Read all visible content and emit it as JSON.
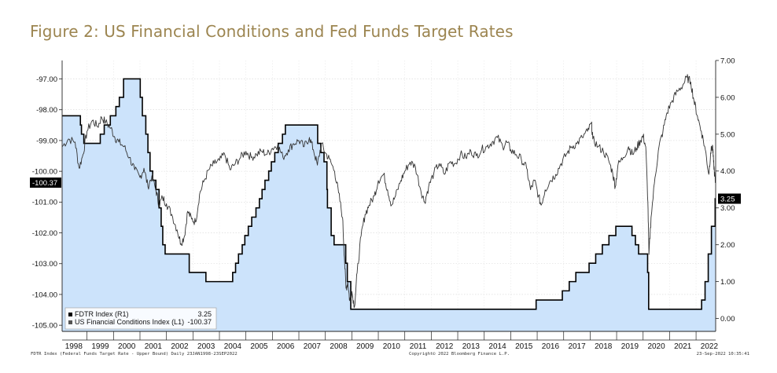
{
  "title": "Figure 2: US Financial Conditions and Fed Funds Target Rates",
  "footer": {
    "left": "FDTR Index (Federal Funds Target Rate - Upper Bound) Daily 23JAN1998-23SEP2022",
    "center": "Copyright© 2022 Bloomberg Finance L.P.",
    "right": "23-Sep-2022 10:35:41"
  },
  "legend": {
    "items": [
      {
        "label": "FDTR Index  (R1)",
        "value": "3.25"
      },
      {
        "label": "US Financial Conditions Index  (L1)",
        "value": "-100.37"
      }
    ]
  },
  "last_value_tags": {
    "left": "-100.37",
    "right": "3.25"
  },
  "colors": {
    "fill": "#cce3fb",
    "fdtr_line": "#000000",
    "fci_line": "#333333",
    "tag_bg": "#000000"
  },
  "chart_data": {
    "type": "line",
    "x_ticks": [
      "1998",
      "1999",
      "2000",
      "2001",
      "2002",
      "2003",
      "2004",
      "2005",
      "2006",
      "2007",
      "2008",
      "2009",
      "2010",
      "2011",
      "2012",
      "2013",
      "2014",
      "2015",
      "2016",
      "2017",
      "2018",
      "2019",
      "2020",
      "2021",
      "2022"
    ],
    "left_axis": {
      "ticks": [
        "-97.00",
        "-98.00",
        "-99.00",
        "-100.00",
        "-101.00",
        "-102.00",
        "-103.00",
        "-104.00",
        "-105.00"
      ],
      "range": [
        -105.2,
        -96.4
      ]
    },
    "right_axis": {
      "ticks": [
        "7.00",
        "6.00",
        "5.00",
        "4.00",
        "3.00",
        "2.00",
        "1.00",
        "0.00"
      ],
      "range": [
        -0.35,
        7.0
      ]
    },
    "series": [
      {
        "name": "FDTR Index (R1)",
        "axis": "right",
        "style": "step-area",
        "points": [
          [
            1998.06,
            5.5
          ],
          [
            1998.75,
            5.25
          ],
          [
            1998.79,
            5.0
          ],
          [
            1998.88,
            4.75
          ],
          [
            1999.5,
            5.0
          ],
          [
            1999.65,
            5.25
          ],
          [
            1999.88,
            5.5
          ],
          [
            2000.09,
            5.75
          ],
          [
            2000.22,
            6.0
          ],
          [
            2000.38,
            6.5
          ],
          [
            2001.01,
            6.0
          ],
          [
            2001.09,
            5.5
          ],
          [
            2001.22,
            5.0
          ],
          [
            2001.3,
            4.5
          ],
          [
            2001.38,
            4.0
          ],
          [
            2001.48,
            3.75
          ],
          [
            2001.6,
            3.5
          ],
          [
            2001.72,
            3.0
          ],
          [
            2001.8,
            2.5
          ],
          [
            2001.86,
            2.0
          ],
          [
            2001.95,
            1.75
          ],
          [
            2002.86,
            1.25
          ],
          [
            2003.49,
            1.0
          ],
          [
            2004.5,
            1.25
          ],
          [
            2004.61,
            1.5
          ],
          [
            2004.72,
            1.75
          ],
          [
            2004.86,
            2.0
          ],
          [
            2004.96,
            2.25
          ],
          [
            2005.09,
            2.5
          ],
          [
            2005.22,
            2.75
          ],
          [
            2005.38,
            3.0
          ],
          [
            2005.51,
            3.25
          ],
          [
            2005.61,
            3.5
          ],
          [
            2005.72,
            3.75
          ],
          [
            2005.86,
            4.0
          ],
          [
            2005.96,
            4.25
          ],
          [
            2006.09,
            4.5
          ],
          [
            2006.22,
            4.75
          ],
          [
            2006.38,
            5.0
          ],
          [
            2006.49,
            5.25
          ],
          [
            2007.71,
            4.75
          ],
          [
            2007.83,
            4.5
          ],
          [
            2007.95,
            4.25
          ],
          [
            2008.06,
            3.5
          ],
          [
            2008.08,
            3.0
          ],
          [
            2008.22,
            2.25
          ],
          [
            2008.33,
            2.0
          ],
          [
            2008.77,
            1.5
          ],
          [
            2008.83,
            1.0
          ],
          [
            2008.96,
            0.25
          ],
          [
            2015.96,
            0.5
          ],
          [
            2016.95,
            0.75
          ],
          [
            2017.21,
            1.0
          ],
          [
            2017.46,
            1.25
          ],
          [
            2017.96,
            1.5
          ],
          [
            2018.21,
            1.75
          ],
          [
            2018.46,
            2.0
          ],
          [
            2018.71,
            2.25
          ],
          [
            2018.97,
            2.5
          ],
          [
            2019.58,
            2.25
          ],
          [
            2019.71,
            2.0
          ],
          [
            2019.83,
            1.75
          ],
          [
            2020.17,
            1.25
          ],
          [
            2020.21,
            0.25
          ],
          [
            2022.21,
            0.5
          ],
          [
            2022.34,
            1.0
          ],
          [
            2022.46,
            1.75
          ],
          [
            2022.58,
            2.5
          ],
          [
            2022.72,
            3.25
          ],
          [
            2022.73,
            3.25
          ]
        ]
      },
      {
        "name": "US Financial Conditions Index (L1)",
        "axis": "left",
        "style": "line",
        "points": [
          [
            1998.06,
            -99.2
          ],
          [
            1998.3,
            -98.95
          ],
          [
            1998.55,
            -99.05
          ],
          [
            1998.7,
            -99.9
          ],
          [
            1998.85,
            -99.45
          ],
          [
            1999.0,
            -98.7
          ],
          [
            1999.2,
            -98.35
          ],
          [
            1999.4,
            -98.55
          ],
          [
            1999.55,
            -98.25
          ],
          [
            1999.7,
            -98.4
          ],
          [
            1999.9,
            -98.6
          ],
          [
            2000.05,
            -98.9
          ],
          [
            2000.2,
            -99.05
          ],
          [
            2000.4,
            -99.2
          ],
          [
            2000.6,
            -99.55
          ],
          [
            2000.8,
            -99.95
          ],
          [
            2001.0,
            -100.2
          ],
          [
            2001.15,
            -99.9
          ],
          [
            2001.3,
            -100.5
          ],
          [
            2001.45,
            -100.15
          ],
          [
            2001.6,
            -100.6
          ],
          [
            2001.72,
            -101.1
          ],
          [
            2001.85,
            -100.85
          ],
          [
            2002.0,
            -101.05
          ],
          [
            2002.2,
            -101.4
          ],
          [
            2002.4,
            -101.9
          ],
          [
            2002.55,
            -102.35
          ],
          [
            2002.68,
            -102.1
          ],
          [
            2002.8,
            -101.3
          ],
          [
            2002.95,
            -101.55
          ],
          [
            2003.1,
            -101.65
          ],
          [
            2003.25,
            -100.75
          ],
          [
            2003.4,
            -100.35
          ],
          [
            2003.6,
            -99.95
          ],
          [
            2003.8,
            -99.75
          ],
          [
            2004.0,
            -99.65
          ],
          [
            2004.2,
            -99.45
          ],
          [
            2004.4,
            -99.95
          ],
          [
            2004.6,
            -99.75
          ],
          [
            2004.8,
            -99.55
          ],
          [
            2005.0,
            -99.35
          ],
          [
            2005.2,
            -99.55
          ],
          [
            2005.4,
            -99.45
          ],
          [
            2005.6,
            -99.35
          ],
          [
            2005.8,
            -99.45
          ],
          [
            2006.0,
            -99.25
          ],
          [
            2006.2,
            -99.15
          ],
          [
            2006.4,
            -99.55
          ],
          [
            2006.6,
            -99.3
          ],
          [
            2006.8,
            -99.1
          ],
          [
            2007.0,
            -99.0
          ],
          [
            2007.2,
            -99.2
          ],
          [
            2007.4,
            -98.9
          ],
          [
            2007.55,
            -99.3
          ],
          [
            2007.7,
            -99.8
          ],
          [
            2007.85,
            -99.1
          ],
          [
            2008.0,
            -99.4
          ],
          [
            2008.15,
            -99.6
          ],
          [
            2008.35,
            -100.0
          ],
          [
            2008.5,
            -100.7
          ],
          [
            2008.65,
            -101.5
          ],
          [
            2008.72,
            -102.8
          ],
          [
            2008.78,
            -103.8
          ],
          [
            2008.85,
            -103.6
          ],
          [
            2008.92,
            -104.2
          ],
          [
            2009.0,
            -103.9
          ],
          [
            2009.1,
            -104.4
          ],
          [
            2009.2,
            -103.3
          ],
          [
            2009.35,
            -102.1
          ],
          [
            2009.5,
            -101.4
          ],
          [
            2009.65,
            -101.1
          ],
          [
            2009.85,
            -100.8
          ],
          [
            2010.0,
            -100.3
          ],
          [
            2010.2,
            -100.1
          ],
          [
            2010.35,
            -100.6
          ],
          [
            2010.5,
            -101.1
          ],
          [
            2010.65,
            -100.8
          ],
          [
            2010.85,
            -100.3
          ],
          [
            2011.0,
            -100.0
          ],
          [
            2011.2,
            -99.7
          ],
          [
            2011.4,
            -99.85
          ],
          [
            2011.6,
            -100.6
          ],
          [
            2011.75,
            -101.0
          ],
          [
            2011.9,
            -100.5
          ],
          [
            2012.1,
            -100.05
          ],
          [
            2012.3,
            -99.75
          ],
          [
            2012.5,
            -100.1
          ],
          [
            2012.7,
            -99.7
          ],
          [
            2012.9,
            -99.75
          ],
          [
            2013.1,
            -99.45
          ],
          [
            2013.3,
            -99.55
          ],
          [
            2013.5,
            -99.35
          ],
          [
            2013.7,
            -99.5
          ],
          [
            2013.9,
            -99.3
          ],
          [
            2014.1,
            -99.2
          ],
          [
            2014.3,
            -99.05
          ],
          [
            2014.5,
            -98.9
          ],
          [
            2014.7,
            -99.2
          ],
          [
            2014.85,
            -99.05
          ],
          [
            2015.0,
            -99.3
          ],
          [
            2015.2,
            -99.45
          ],
          [
            2015.4,
            -99.6
          ],
          [
            2015.6,
            -99.9
          ],
          [
            2015.75,
            -100.6
          ],
          [
            2015.9,
            -100.3
          ],
          [
            2016.05,
            -100.8
          ],
          [
            2016.15,
            -101.1
          ],
          [
            2016.3,
            -100.6
          ],
          [
            2016.5,
            -100.3
          ],
          [
            2016.7,
            -100.1
          ],
          [
            2016.9,
            -99.75
          ],
          [
            2017.1,
            -99.45
          ],
          [
            2017.3,
            -99.2
          ],
          [
            2017.5,
            -99.1
          ],
          [
            2017.7,
            -98.9
          ],
          [
            2017.9,
            -98.7
          ],
          [
            2018.05,
            -98.45
          ],
          [
            2018.1,
            -98.95
          ],
          [
            2018.3,
            -99.2
          ],
          [
            2018.5,
            -99.35
          ],
          [
            2018.7,
            -99.65
          ],
          [
            2018.85,
            -100.05
          ],
          [
            2018.95,
            -100.5
          ],
          [
            2019.05,
            -99.8
          ],
          [
            2019.25,
            -99.55
          ],
          [
            2019.45,
            -99.2
          ],
          [
            2019.6,
            -99.45
          ],
          [
            2019.75,
            -99.25
          ],
          [
            2019.9,
            -99.0
          ],
          [
            2020.0,
            -98.85
          ],
          [
            2020.1,
            -99.2
          ],
          [
            2020.18,
            -101.0
          ],
          [
            2020.22,
            -102.7
          ],
          [
            2020.3,
            -101.5
          ],
          [
            2020.45,
            -100.2
          ],
          [
            2020.6,
            -99.2
          ],
          [
            2020.75,
            -98.7
          ],
          [
            2020.9,
            -98.1
          ],
          [
            2021.1,
            -97.7
          ],
          [
            2021.3,
            -97.4
          ],
          [
            2021.5,
            -97.2
          ],
          [
            2021.65,
            -96.95
          ],
          [
            2021.8,
            -97.1
          ],
          [
            2021.92,
            -97.7
          ],
          [
            2022.05,
            -98.2
          ],
          [
            2022.2,
            -98.7
          ],
          [
            2022.35,
            -99.3
          ],
          [
            2022.48,
            -100.1
          ],
          [
            2022.55,
            -99.4
          ],
          [
            2022.62,
            -99.15
          ],
          [
            2022.66,
            -99.7
          ],
          [
            2022.7,
            -100.1
          ],
          [
            2022.73,
            -100.37
          ]
        ]
      }
    ]
  }
}
